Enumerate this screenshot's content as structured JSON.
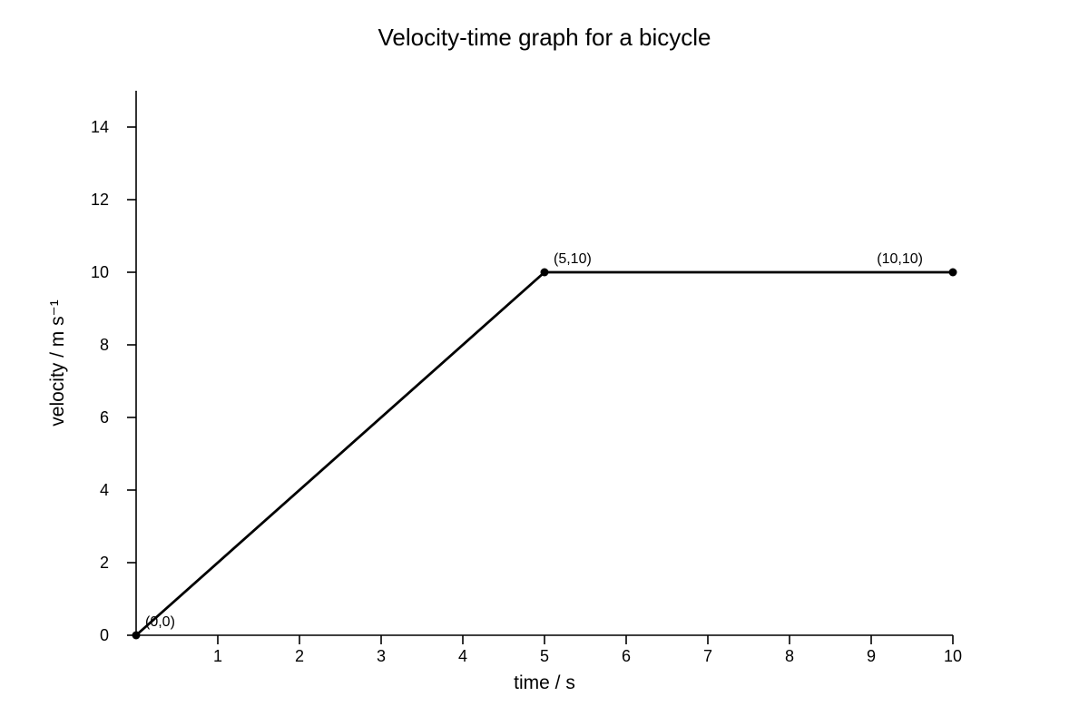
{
  "chart_data": {
    "type": "line",
    "title": "Velocity-time graph for a bicycle",
    "xlabel": "time / s",
    "ylabel": "velocity / m s⁻¹",
    "xlim": [
      0,
      10
    ],
    "ylim": [
      0,
      15
    ],
    "xticks": [
      1,
      2,
      3,
      4,
      5,
      6,
      7,
      8,
      9,
      10
    ],
    "yticks": [
      0,
      2,
      4,
      6,
      8,
      10,
      12,
      14
    ],
    "grid": false,
    "legend": "none",
    "color": "#000000",
    "series": [
      {
        "x": [
          0,
          5,
          10
        ],
        "y": [
          0,
          10,
          10
        ],
        "point_labels": [
          "(0,0)",
          "(5,10)",
          "(10,10)"
        ]
      }
    ]
  }
}
